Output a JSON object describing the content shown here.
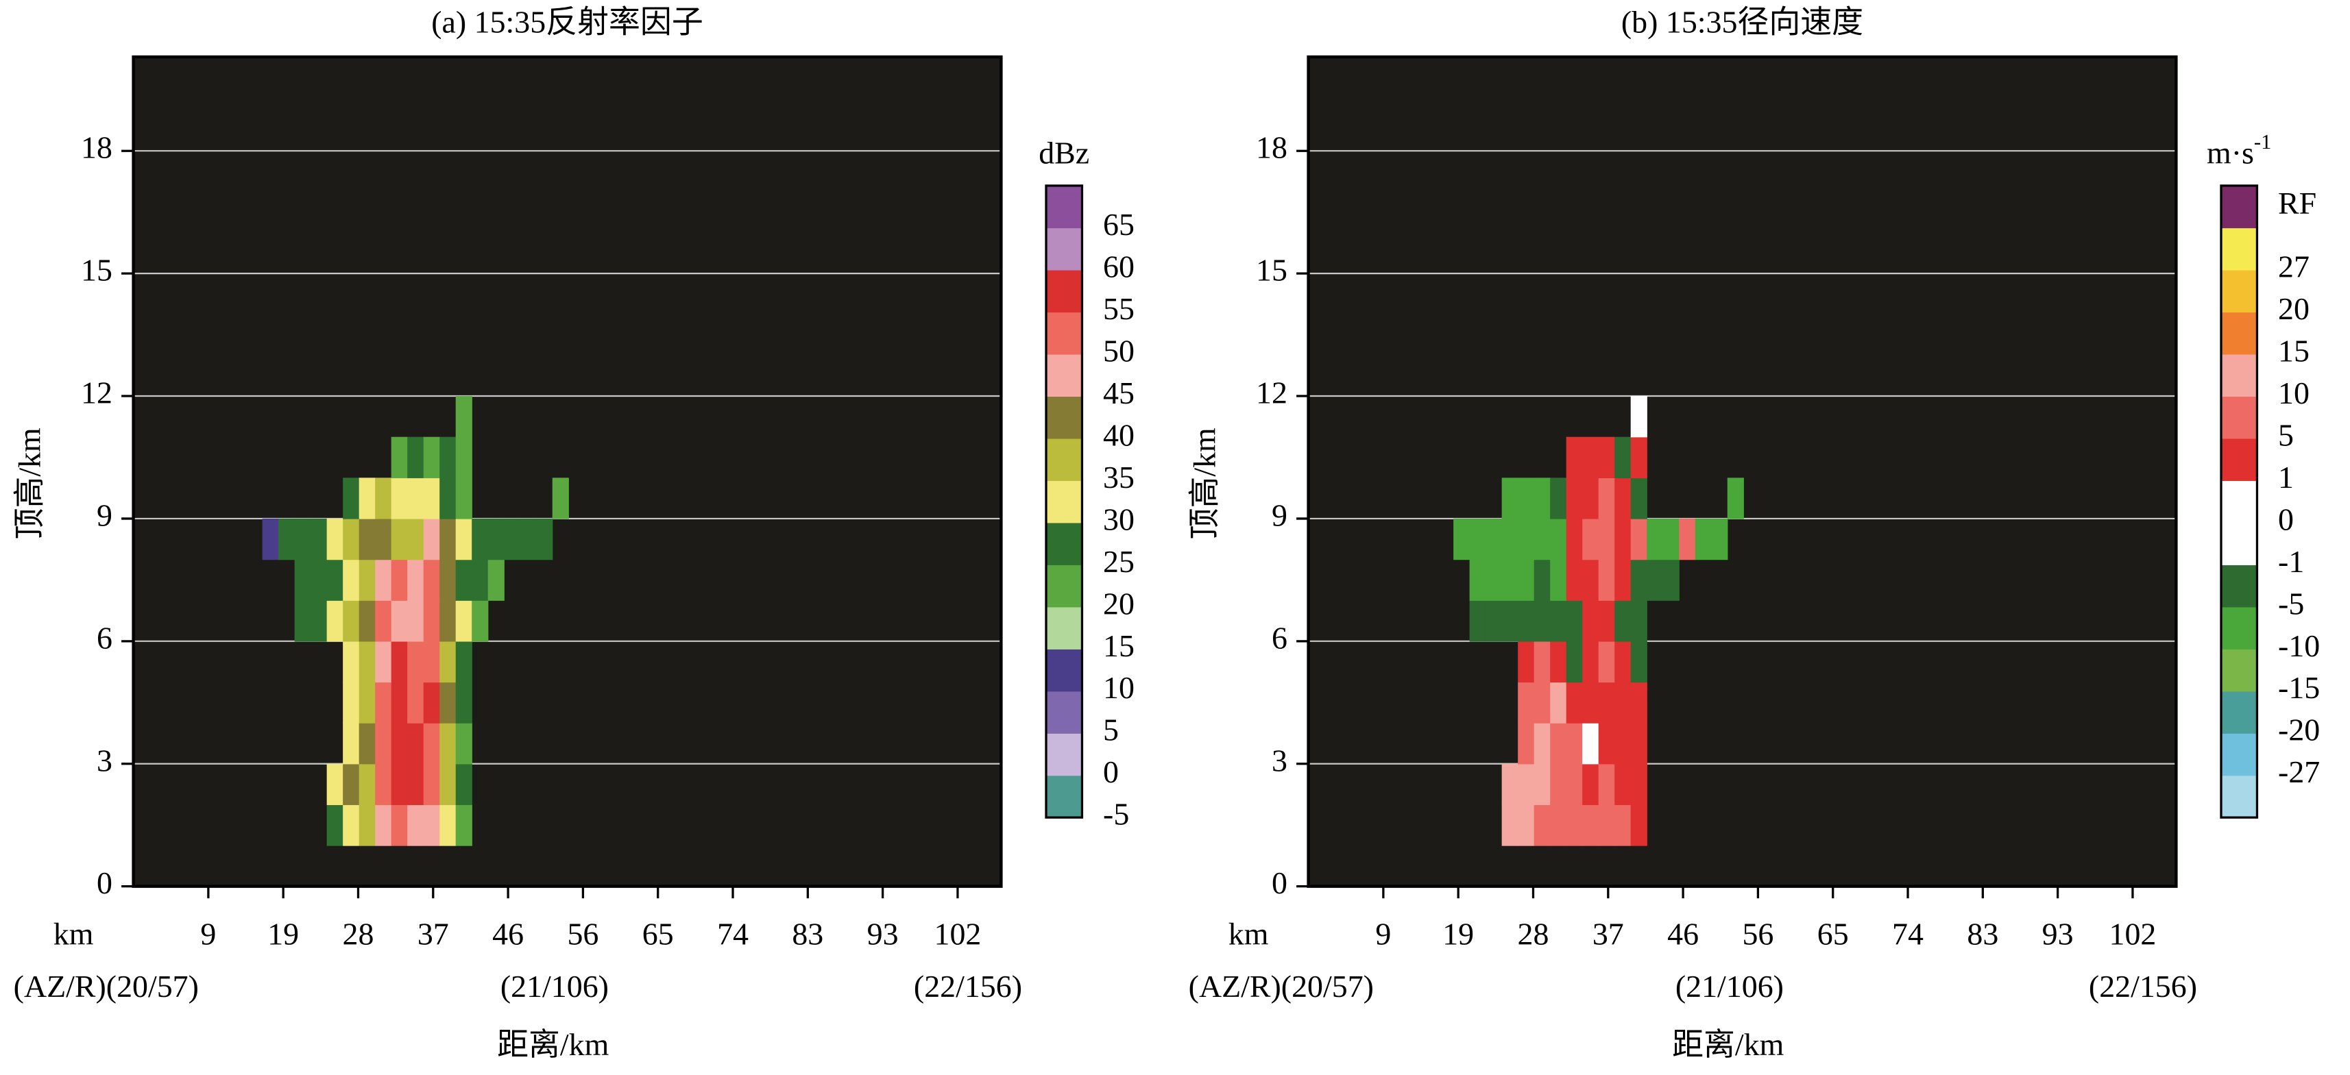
{
  "chart_data": [
    {
      "type": "heatmap",
      "title": "(a) 15:35反射率因子",
      "xlabel": "距离/km",
      "ylabel": "顶高/km",
      "x_unit": "km",
      "azr_labels": [
        "(AZ/R)(20/57)",
        "(21/106)",
        "(22/156)"
      ],
      "xlim": [
        0,
        107.7
      ],
      "ylim": [
        0,
        20.3
      ],
      "xticks": [
        {
          "value": 9.3,
          "label": "9"
        },
        {
          "value": 18.6,
          "label": "19"
        },
        {
          "value": 27.9,
          "label": "28"
        },
        {
          "value": 37.2,
          "label": "37"
        },
        {
          "value": 46.5,
          "label": "46"
        },
        {
          "value": 55.8,
          "label": "56"
        },
        {
          "value": 65.1,
          "label": "65"
        },
        {
          "value": 74.4,
          "label": "74"
        },
        {
          "value": 83.7,
          "label": "83"
        },
        {
          "value": 93,
          "label": "93"
        },
        {
          "value": 102.3,
          "label": "102"
        }
      ],
      "yticks": [
        0,
        3,
        6,
        9,
        12,
        15,
        18
      ],
      "grid": true,
      "x_edges": [
        16,
        18,
        20,
        22,
        24,
        26,
        28,
        30,
        32,
        34,
        36,
        38,
        40,
        42,
        44,
        46,
        48,
        50,
        52,
        54,
        56
      ],
      "y_edges": [
        1,
        2,
        3,
        4,
        5,
        6,
        7,
        8,
        9,
        10,
        11,
        12
      ],
      "z": [
        [
          null,
          null,
          null,
          null,
          25,
          30,
          35,
          45,
          50,
          45,
          45,
          30,
          20,
          null,
          null,
          null,
          null,
          null,
          null,
          null
        ],
        [
          null,
          null,
          null,
          null,
          30,
          40,
          35,
          50,
          55,
          55,
          50,
          35,
          25,
          null,
          null,
          null,
          null,
          null,
          null,
          null
        ],
        [
          null,
          null,
          null,
          null,
          null,
          30,
          40,
          50,
          55,
          55,
          50,
          35,
          20,
          null,
          null,
          null,
          null,
          null,
          null,
          null
        ],
        [
          null,
          null,
          null,
          null,
          null,
          30,
          35,
          50,
          55,
          50,
          55,
          40,
          25,
          null,
          null,
          null,
          null,
          null,
          null,
          null
        ],
        [
          null,
          null,
          null,
          null,
          null,
          30,
          35,
          45,
          55,
          50,
          50,
          35,
          25,
          null,
          null,
          null,
          null,
          null,
          null,
          null
        ],
        [
          null,
          null,
          25,
          25,
          30,
          35,
          40,
          50,
          45,
          45,
          50,
          40,
          30,
          20,
          null,
          null,
          null,
          null,
          null,
          null
        ],
        [
          null,
          null,
          25,
          25,
          25,
          30,
          35,
          45,
          50,
          45,
          50,
          40,
          25,
          25,
          20,
          null,
          null,
          null,
          null,
          null
        ],
        [
          10,
          25,
          25,
          25,
          30,
          35,
          40,
          40,
          35,
          35,
          45,
          40,
          30,
          25,
          25,
          25,
          25,
          25,
          null,
          null
        ],
        [
          null,
          null,
          null,
          null,
          null,
          25,
          30,
          35,
          30,
          30,
          30,
          25,
          20,
          null,
          null,
          null,
          null,
          null,
          20,
          null
        ],
        [
          null,
          null,
          null,
          null,
          null,
          null,
          null,
          null,
          20,
          25,
          20,
          25,
          20,
          null,
          null,
          null,
          null,
          null,
          null,
          null
        ],
        [
          null,
          null,
          null,
          null,
          null,
          null,
          null,
          null,
          null,
          null,
          null,
          null,
          20,
          null,
          null,
          null,
          null,
          null,
          null,
          null
        ]
      ],
      "colorbar": {
        "title": "dBz",
        "labels": [
          -5,
          0,
          5,
          10,
          15,
          20,
          25,
          30,
          35,
          40,
          45,
          50,
          55,
          60,
          65
        ],
        "colors": [
          "#4c9a90",
          "#c9b8dc",
          "#7f68ad",
          "#4a3d8a",
          "#b3d89c",
          "#5aa83f",
          "#2e7030",
          "#f2e87a",
          "#bcbc3c",
          "#857b35",
          "#f5aaa3",
          "#ee6a5f",
          "#da3030",
          "#b98cc0",
          "#8b4f9b"
        ]
      }
    },
    {
      "type": "heatmap",
      "title": "(b) 15:35径向速度",
      "xlabel": "距离/km",
      "ylabel": "顶高/km",
      "x_unit": "km",
      "azr_labels": [
        "(AZ/R)(20/57)",
        "(21/106)",
        "(22/156)"
      ],
      "xlim": [
        0,
        107.7
      ],
      "ylim": [
        0,
        20.3
      ],
      "xticks": [
        {
          "value": 9.3,
          "label": "9"
        },
        {
          "value": 18.6,
          "label": "19"
        },
        {
          "value": 27.9,
          "label": "28"
        },
        {
          "value": 37.2,
          "label": "37"
        },
        {
          "value": 46.5,
          "label": "46"
        },
        {
          "value": 55.8,
          "label": "56"
        },
        {
          "value": 65.1,
          "label": "65"
        },
        {
          "value": 74.4,
          "label": "74"
        },
        {
          "value": 83.7,
          "label": "83"
        },
        {
          "value": 93,
          "label": "93"
        },
        {
          "value": 102.3,
          "label": "102"
        }
      ],
      "yticks": [
        0,
        3,
        6,
        9,
        12,
        15,
        18
      ],
      "grid": true,
      "x_edges": [
        16,
        18,
        20,
        22,
        24,
        26,
        28,
        30,
        32,
        34,
        36,
        38,
        40,
        42,
        44,
        46,
        48,
        50,
        52,
        54,
        56
      ],
      "y_edges": [
        1,
        2,
        3,
        4,
        5,
        6,
        7,
        8,
        9,
        10,
        11,
        12
      ],
      "z": [
        [
          null,
          null,
          null,
          null,
          10,
          10,
          5,
          5,
          5,
          5,
          5,
          5,
          1,
          null,
          null,
          null,
          null,
          null,
          null,
          null
        ],
        [
          null,
          null,
          null,
          null,
          10,
          10,
          10,
          5,
          5,
          1,
          5,
          1,
          1,
          null,
          null,
          null,
          null,
          null,
          null,
          null
        ],
        [
          null,
          null,
          null,
          null,
          null,
          5,
          10,
          5,
          5,
          -1,
          1,
          1,
          1,
          null,
          null,
          null,
          null,
          null,
          null,
          null
        ],
        [
          null,
          null,
          null,
          null,
          null,
          5,
          5,
          10,
          1,
          1,
          1,
          1,
          1,
          null,
          null,
          null,
          null,
          null,
          null,
          null
        ],
        [
          null,
          null,
          null,
          null,
          null,
          1,
          5,
          1,
          -5,
          1,
          5,
          1,
          -5,
          null,
          null,
          null,
          null,
          null,
          null,
          null
        ],
        [
          null,
          null,
          -5,
          -5,
          -5,
          -5,
          -5,
          -5,
          -5,
          1,
          1,
          -5,
          -5,
          null,
          null,
          null,
          null,
          null,
          null,
          null
        ],
        [
          null,
          null,
          -10,
          -10,
          -10,
          -10,
          -5,
          -10,
          1,
          1,
          5,
          1,
          -5,
          -5,
          -5,
          null,
          null,
          null,
          null,
          null
        ],
        [
          null,
          -10,
          -10,
          -10,
          -10,
          -10,
          -10,
          -10,
          1,
          5,
          5,
          1,
          5,
          -10,
          -10,
          5,
          -10,
          -10,
          null,
          null
        ],
        [
          null,
          null,
          null,
          null,
          -10,
          -10,
          -10,
          -5,
          1,
          1,
          5,
          1,
          -5,
          null,
          null,
          null,
          null,
          null,
          -10,
          null
        ],
        [
          null,
          null,
          null,
          null,
          null,
          null,
          null,
          null,
          1,
          1,
          1,
          -5,
          1,
          null,
          null,
          null,
          null,
          null,
          null,
          null
        ],
        [
          null,
          null,
          null,
          null,
          null,
          null,
          null,
          null,
          null,
          null,
          null,
          null,
          0,
          null,
          null,
          null,
          null,
          null,
          null,
          null
        ]
      ],
      "colorbar": {
        "title": "m·s",
        "title_sup": "-1",
        "labels": [
          null,
          -27,
          -20,
          -15,
          -10,
          -5,
          -1,
          0,
          1,
          5,
          10,
          15,
          20,
          27,
          "RF"
        ],
        "colors": [
          "#a9d8e8",
          "#6fc0dc",
          "#4a9e9a",
          "#7ab648",
          "#4aa83a",
          "#2e6b30",
          "#ffffff",
          "#ffffff",
          "#e03030",
          "#ee6a64",
          "#f5a8a0",
          "#f08030",
          "#f5c030",
          "#f5ea50",
          "#7a2a66"
        ]
      }
    }
  ]
}
